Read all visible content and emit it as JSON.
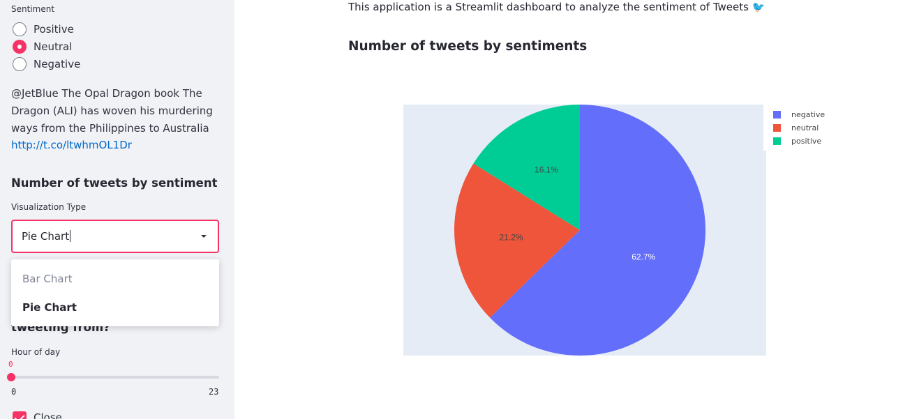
{
  "sidebar": {
    "sentiment_label": "Sentiment",
    "radio_options": [
      {
        "label": "Positive",
        "selected": false
      },
      {
        "label": "Neutral",
        "selected": true
      },
      {
        "label": "Negative",
        "selected": false
      }
    ],
    "tweet_text": "@JetBlue The Opal Dragon book The Dragon (ALI) has woven his murdering ways from the Philippines to Australia",
    "tweet_link": "http://t.co/ltwhmOL1Dr",
    "section_heading": "Number of tweets by sentiment",
    "viz_label": "Visualization Type",
    "select_value": "Pie Chart",
    "dropdown_options": [
      {
        "label": "Bar Chart",
        "selected": false
      },
      {
        "label": "Pie Chart",
        "selected": true
      }
    ],
    "hidden_heading_fragment": "tweeting from?",
    "hour_label": "Hour of day",
    "slider": {
      "value": "0",
      "min": "0",
      "max": "23"
    },
    "checkbox_label": "Close"
  },
  "main": {
    "intro_text": "This application is a Streamlit dashboard to analyze the sentiment of Tweets 🐦",
    "heading": "Number of tweets by sentiments"
  },
  "colors": {
    "accent": "#f63366",
    "negative": "#636efa",
    "neutral": "#ef553b",
    "positive": "#00cc96",
    "plot_bg": "#e5ecf6"
  },
  "chart_data": {
    "type": "pie",
    "labels": [
      "negative",
      "neutral",
      "positive"
    ],
    "values": [
      62.7,
      21.2,
      16.1
    ],
    "value_labels": [
      "62.7%",
      "21.2%",
      "16.1%"
    ],
    "legend_position": "top-right"
  }
}
